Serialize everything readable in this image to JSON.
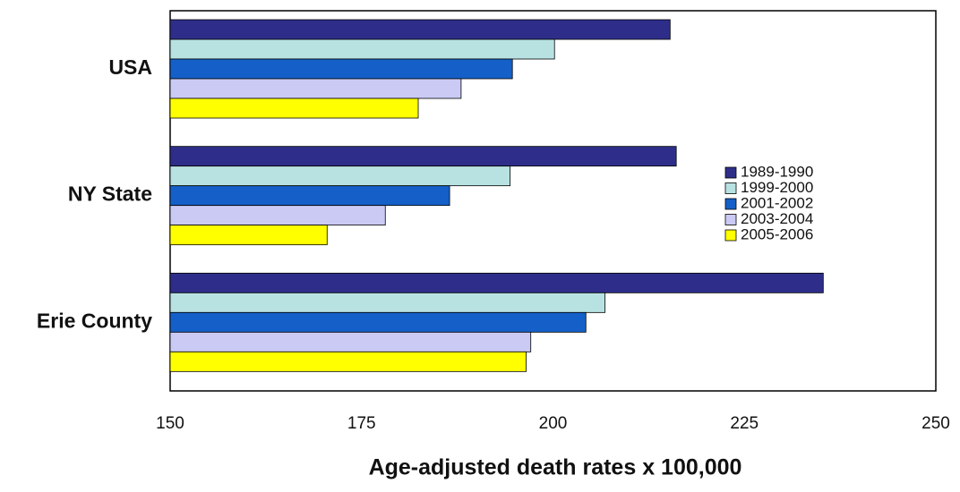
{
  "chart_data": {
    "type": "hbar",
    "xlabel": "Age-adjusted death rates x 100,000",
    "categories": [
      "USA",
      "NY State",
      "Erie County"
    ],
    "series": [
      {
        "name": "1989-1990",
        "color": "#2e2e8a",
        "values": [
          215.3,
          216.1,
          235.3
        ]
      },
      {
        "name": "1999-2000",
        "color": "#b8e2e2",
        "values": [
          200.2,
          194.4,
          206.8
        ]
      },
      {
        "name": "2001-2002",
        "color": "#1560c8",
        "values": [
          194.7,
          186.5,
          204.3
        ]
      },
      {
        "name": "2003-2004",
        "color": "#cacaf5",
        "values": [
          188.0,
          178.1,
          197.1
        ]
      },
      {
        "name": "2005-2006",
        "color": "#ffff00",
        "values": [
          182.4,
          170.5,
          196.5
        ]
      }
    ],
    "xlim": [
      150,
      250
    ],
    "xticks": [
      150,
      175,
      200,
      225,
      250
    ],
    "grid": false,
    "legend": "right"
  }
}
